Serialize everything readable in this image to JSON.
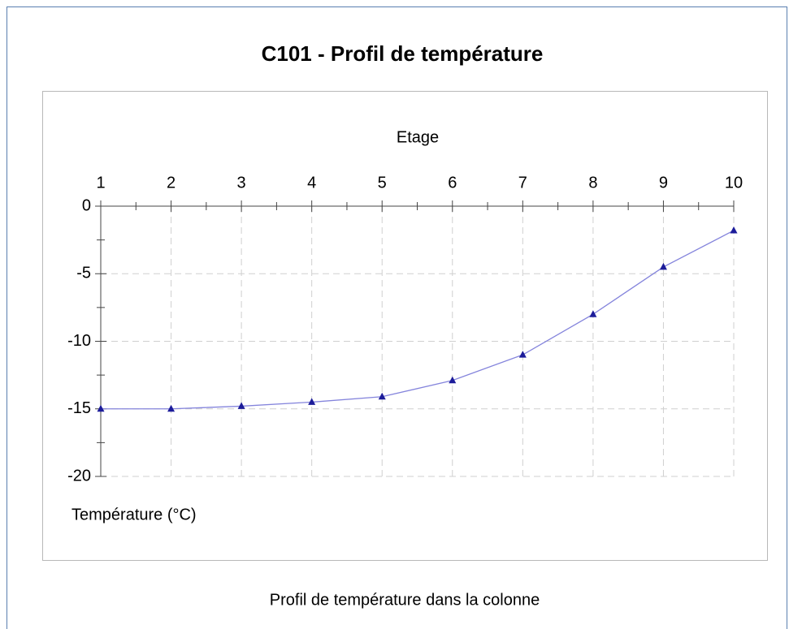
{
  "chart_data": {
    "type": "line",
    "title": "C101 - Profil de température",
    "x_label": "Etage",
    "y_label": "Température (°C)",
    "caption": "Profil de température dans la colonne",
    "x": [
      1,
      2,
      3,
      4,
      5,
      6,
      7,
      8,
      9,
      10
    ],
    "series": [
      {
        "values": [
          -15,
          -15,
          -14.8,
          -14.5,
          -14.1,
          -12.9,
          -11,
          -8,
          -4.5,
          -1.8
        ],
        "color": "#1c1c9a",
        "line_color": "#8484dc"
      }
    ],
    "xlim": [
      1,
      10
    ],
    "xticks": [
      1,
      2,
      3,
      4,
      5,
      6,
      7,
      8,
      9,
      10
    ],
    "ylim": [
      -20,
      0
    ],
    "yticks": [
      0,
      -5,
      -10,
      -15,
      -20
    ],
    "grid": true
  }
}
